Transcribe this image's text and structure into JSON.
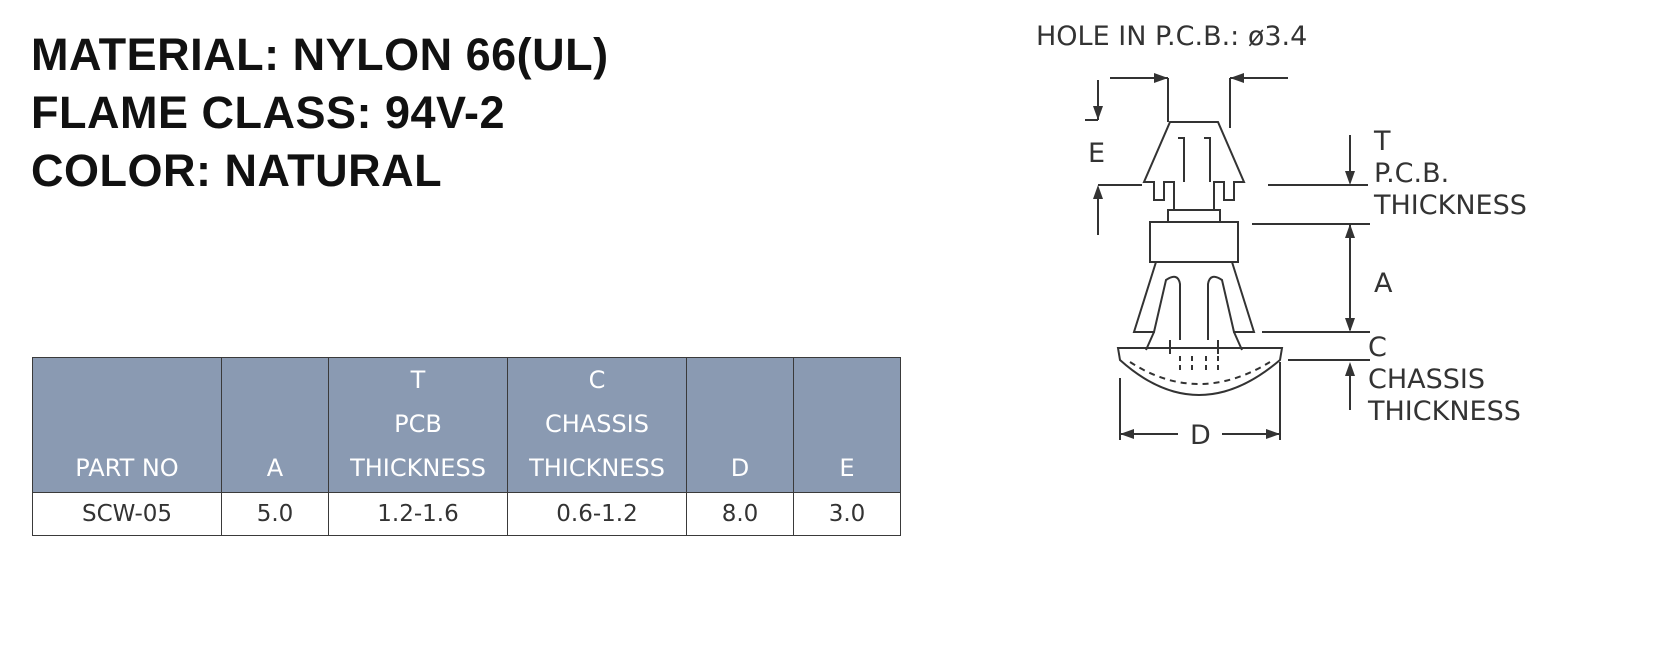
{
  "specs": {
    "material": "MATERIAL: NYLON 66(UL)",
    "flame_class": "FLAME CLASS: 94V-2",
    "color": "COLOR: NATURAL"
  },
  "table": {
    "headers": {
      "part_no": "PART NO",
      "a": "A",
      "t_top": "T",
      "t_mid": "PCB",
      "t_bot": "THICKNESS",
      "c_top": "C",
      "c_mid": "CHASSIS",
      "c_bot": "THICKNESS",
      "d": "D",
      "e": "E"
    },
    "rows": [
      {
        "part_no": "SCW-05",
        "a": "5.0",
        "t": "1.2-1.6",
        "c": "0.6-1.2",
        "d": "8.0",
        "e": "3.0"
      }
    ]
  },
  "drawing": {
    "hole_label": "HOLE IN P.C.B.: ø3.4",
    "e_label": "E",
    "t_label": "T",
    "pcb_label": "P.C.B.",
    "pcb_thickness_label": "THICKNESS",
    "a_label": "A",
    "c_label": "C",
    "chassis_label": "CHASSIS",
    "chassis_thickness_label": "THICKNESS",
    "d_label": "D"
  }
}
